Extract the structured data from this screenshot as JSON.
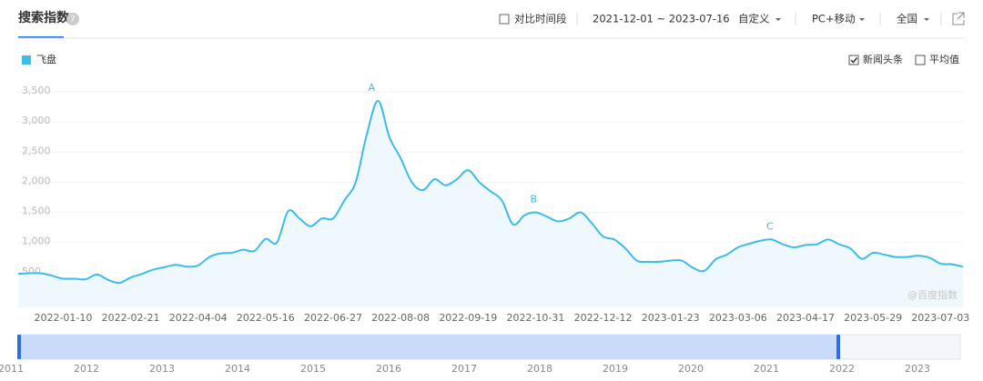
{
  "header": {
    "title": "搜索指数",
    "compare": "对比时间段",
    "date_range": "2021-12-01 ~ 2023-07-16",
    "custom": "自定义",
    "device": "PC+移动",
    "region": "全国"
  },
  "chart_data": {
    "type": "line",
    "categories": [
      null,
      null,
      null,
      null,
      "2022-01-10",
      null,
      null,
      null,
      null,
      null,
      "2022-02-21",
      null,
      null,
      null,
      null,
      null,
      "2022-04-04",
      null,
      null,
      null,
      null,
      null,
      "2022-05-16",
      null,
      null,
      null,
      null,
      null,
      "2022-06-27",
      null,
      null,
      null,
      null,
      null,
      "2022-08-08",
      null,
      null,
      null,
      null,
      null,
      "2022-09-19",
      null,
      null,
      null,
      null,
      null,
      "2022-10-31",
      null,
      null,
      null,
      null,
      null,
      "2022-12-12",
      null,
      null,
      null,
      null,
      null,
      "2023-01-23",
      null,
      null,
      null,
      null,
      null,
      "2023-03-06",
      null,
      null,
      null,
      null,
      null,
      "2023-04-17",
      null,
      null,
      null,
      null,
      null,
      "2023-05-29",
      null,
      null,
      null,
      null,
      null,
      "2023-07-03",
      null,
      null
    ],
    "series": [
      {
        "name": "飞盘",
        "color": "#3cbcec",
        "values": [
          480,
          490,
          490,
          450,
          400,
          400,
          390,
          470,
          380,
          330,
          420,
          480,
          550,
          590,
          630,
          600,
          620,
          760,
          820,
          830,
          880,
          860,
          1060,
          1000,
          1520,
          1400,
          1270,
          1400,
          1400,
          1700,
          2000,
          2800,
          3350,
          2750,
          2400,
          2000,
          1870,
          2050,
          1950,
          2050,
          2200,
          2000,
          1850,
          1700,
          1300,
          1450,
          1500,
          1430,
          1350,
          1400,
          1500,
          1320,
          1100,
          1050,
          900,
          700,
          680,
          680,
          700,
          700,
          580,
          530,
          720,
          800,
          920,
          980,
          1030,
          1050,
          970,
          920,
          960,
          970,
          1050,
          970,
          900,
          730,
          830,
          800,
          760,
          760,
          780,
          750,
          650,
          640,
          600
        ]
      }
    ],
    "ylim": [
      0,
      3500
    ],
    "yticks": [
      500,
      {
        "value": 1000,
        "label": "1,000"
      },
      {
        "value": 1500,
        "label": "1,500"
      },
      {
        "value": 2000,
        "label": "2,000"
      },
      {
        "value": 2500,
        "label": "2,500"
      },
      {
        "value": 3000,
        "label": "3,000"
      },
      {
        "value": 3500,
        "label": "3,500"
      }
    ],
    "grid": true,
    "annotations": [
      "A",
      "B",
      "C"
    ],
    "options": [
      "新闻头条",
      "平均值"
    ],
    "options_checked": [
      true,
      false
    ],
    "watermark": "@百度指数"
  },
  "navigator": {
    "years": [
      "2011",
      "2012",
      "2013",
      "2014",
      "2015",
      "2016",
      "2017",
      "2018",
      "2019",
      "2020",
      "2021",
      "2022",
      "2023"
    ]
  }
}
